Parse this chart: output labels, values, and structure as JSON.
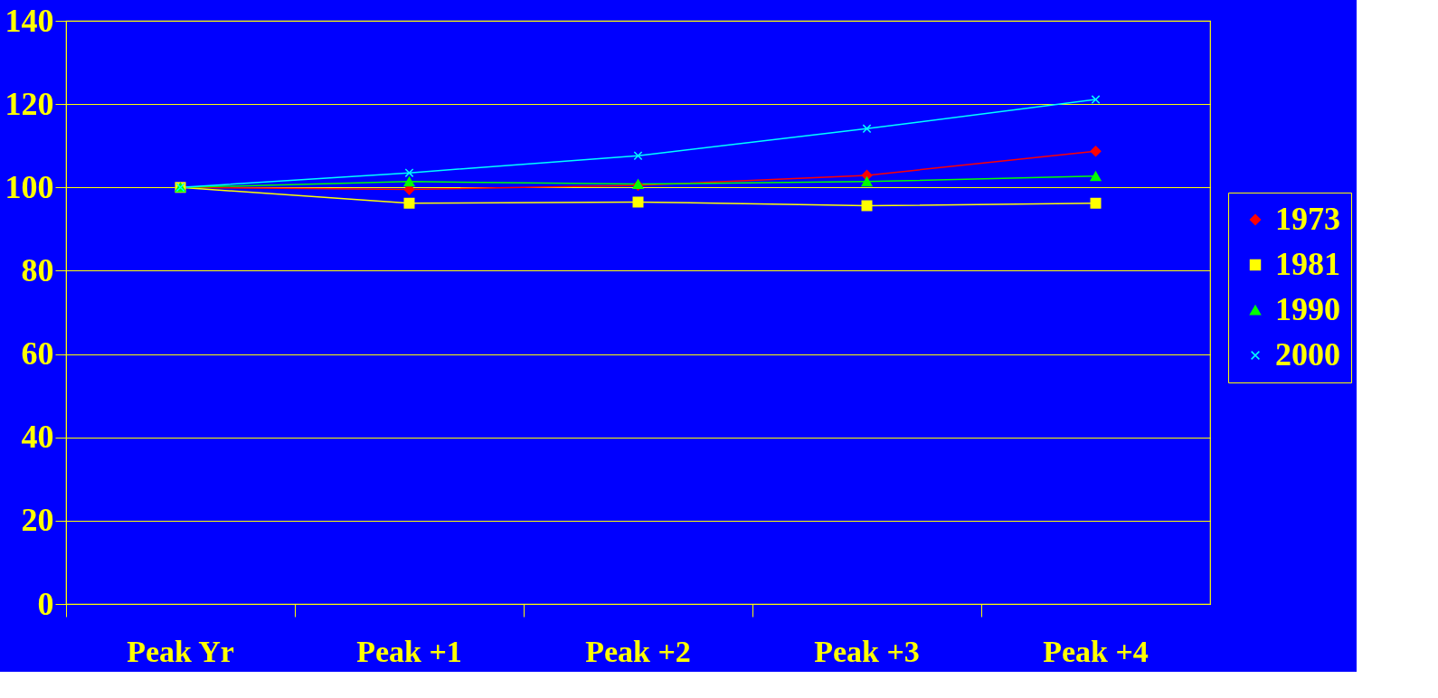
{
  "chart_data": {
    "type": "line",
    "categories": [
      "Peak Yr",
      "Peak +1",
      "Peak +2",
      "Peak +3",
      "Peak +4"
    ],
    "series": [
      {
        "name": "1973",
        "color": "#ff0000",
        "marker": "diamond",
        "values": [
          100,
          99.5,
          100.5,
          102.9,
          108.7
        ]
      },
      {
        "name": "1981",
        "color": "#ffff00",
        "marker": "square",
        "values": [
          100,
          96.2,
          96.5,
          95.6,
          96.2
        ]
      },
      {
        "name": "1990",
        "color": "#00ff00",
        "marker": "triangle",
        "values": [
          100,
          101.4,
          100.8,
          101.4,
          102.7
        ]
      },
      {
        "name": "2000",
        "color": "#00ffff",
        "marker": "cross",
        "values": [
          100,
          103.5,
          107.6,
          114.1,
          121.1
        ]
      }
    ],
    "ylim": [
      0,
      140
    ],
    "yticks": [
      0,
      20,
      40,
      60,
      80,
      100,
      120,
      140
    ],
    "grid": "y",
    "legend": "right",
    "line_style": "solid"
  }
}
